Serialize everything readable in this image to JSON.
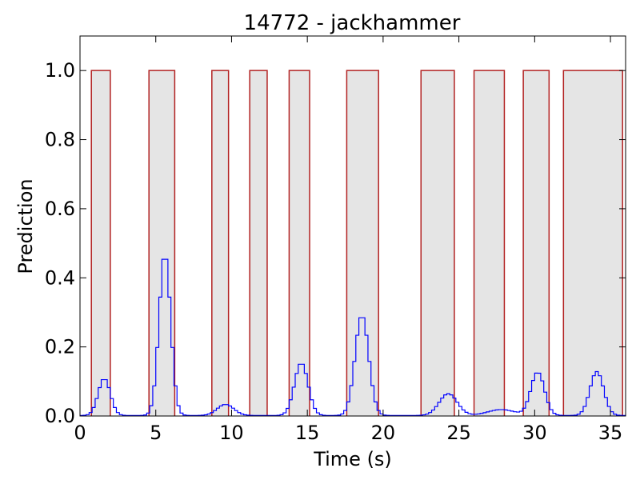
{
  "chart_data": {
    "type": "line",
    "title": "14772 - jackhammer",
    "xlabel": "Time (s)",
    "ylabel": "Prediction",
    "xlim": [
      0,
      36
    ],
    "ylim": [
      0,
      1.1
    ],
    "xticks": [
      0,
      5,
      10,
      15,
      20,
      25,
      30,
      35
    ],
    "xtick_labels": [
      "0",
      "5",
      "10",
      "15",
      "20",
      "25",
      "30",
      "35"
    ],
    "yticks": [
      0.0,
      0.2,
      0.4,
      0.6,
      0.8,
      1.0
    ],
    "ytick_labels": [
      "0.0",
      "0.2",
      "0.4",
      "0.6",
      "0.8",
      "1.0"
    ],
    "grid": false,
    "colors": {
      "ground_truth": "#b22222",
      "fill": "#e5e5e5",
      "prediction": "#0000ff"
    },
    "ground_truth_segments": [
      [
        0.75,
        2.0
      ],
      [
        4.55,
        6.25
      ],
      [
        8.7,
        9.8
      ],
      [
        11.2,
        12.35
      ],
      [
        13.8,
        15.15
      ],
      [
        17.6,
        19.7
      ],
      [
        22.5,
        24.7
      ],
      [
        26.0,
        28.0
      ],
      [
        29.25,
        30.95
      ],
      [
        31.9,
        35.8
      ]
    ],
    "prediction_peaks": [
      {
        "center": 1.6,
        "height": 0.107,
        "width": 0.4
      },
      {
        "center": 5.6,
        "height": 0.468,
        "width": 0.38
      },
      {
        "center": 9.6,
        "height": 0.032,
        "width": 0.55
      },
      {
        "center": 14.6,
        "height": 0.152,
        "width": 0.45
      },
      {
        "center": 18.6,
        "height": 0.29,
        "width": 0.45
      },
      {
        "center": 24.3,
        "height": 0.063,
        "width": 0.6
      },
      {
        "center": 27.8,
        "height": 0.017,
        "width": 0.9
      },
      {
        "center": 30.2,
        "height": 0.125,
        "width": 0.45
      },
      {
        "center": 34.1,
        "height": 0.127,
        "width": 0.45
      }
    ]
  }
}
